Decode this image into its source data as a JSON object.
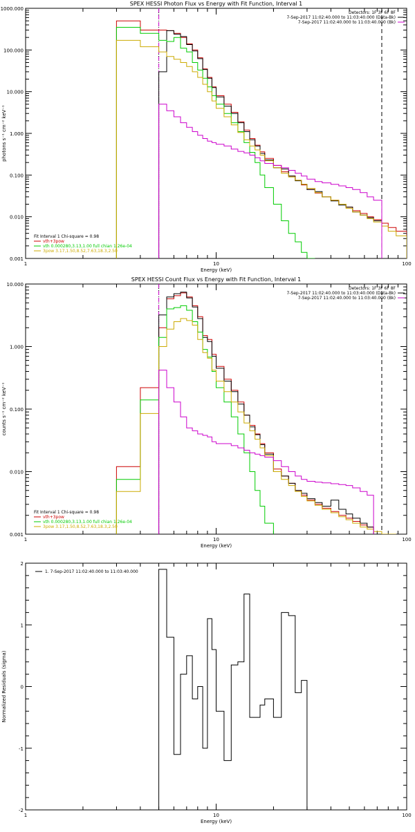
{
  "chart_data": [
    {
      "type": "line",
      "title": "SPEX HESSI Photon Flux vs Energy with Fit Function, Interval 1",
      "xlabel": "Energy (keV)",
      "ylabel": "photons s⁻¹ cm⁻² keV⁻¹",
      "xscale": "log",
      "yscale": "log",
      "xlim": [
        1,
        100
      ],
      "ylim": [
        0.001,
        1000
      ],
      "x_ticks": [
        "1",
        "10",
        "100"
      ],
      "y_ticks": [
        "0.001",
        "0.010",
        "0.100",
        "1.000",
        "10.000",
        "100.000",
        "1000.000"
      ],
      "legend_tr": [
        {
          "text": "Detectors: 1F 3F 6F 8F",
          "color": "#000000"
        },
        {
          "text": "7-Sep-2017 11:02:40.000 to 11:03:40.000 (Data-Bk)",
          "color": "#000000"
        },
        {
          "text": "7-Sep-2017 11:02:40.000 to 11:03:40.000 (Bk)",
          "color": "#cc00cc"
        }
      ],
      "legend_bl": [
        {
          "text": "Fit Interval 1   Chi-square = 0.98",
          "color": "#000000"
        },
        {
          "text": "vth+3pow",
          "color": "#cc0000"
        },
        {
          "text": "vth 0.000280,3.13,1.00  full chian 1.26e-04",
          "color": "#00cc00"
        },
        {
          "text": "3pow 3.17,1.50,8.52,7.63,18.3,2.50",
          "color": "#ccaa00"
        }
      ],
      "vlines": [
        {
          "x": 5.0,
          "style": "dotted",
          "color": "#000000"
        },
        {
          "x": 5.0,
          "style": "dashed",
          "color": "#cc00cc"
        },
        {
          "x": 74.0,
          "style": "dashed",
          "color": "#000000"
        }
      ],
      "edges": [
        3,
        4,
        5,
        5.5,
        6,
        6.5,
        7,
        7.5,
        8,
        8.5,
        9,
        9.5,
        10,
        11,
        12,
        13,
        14,
        15,
        16,
        17,
        18,
        20,
        22,
        24,
        26,
        28,
        30,
        33,
        36,
        40,
        44,
        48,
        52,
        57,
        62,
        67,
        74,
        80,
        88,
        100
      ],
      "series": [
        {
          "name": "vth+3pow",
          "color": "#cc0000",
          "y": [
            500,
            300,
            300,
            290,
            250,
            200,
            140,
            100,
            65,
            35,
            22,
            13,
            8,
            5,
            3.2,
            1.9,
            1.2,
            0.75,
            0.52,
            0.36,
            0.25,
            0.17,
            0.12,
            0.095,
            0.075,
            0.058,
            0.045,
            0.037,
            0.03,
            0.025,
            0.02,
            0.017,
            0.014,
            0.012,
            0.01,
            0.0085,
            0.007,
            0.0055,
            0.0045
          ]
        },
        {
          "name": "Data-Bk",
          "color": "#000000",
          "y": [
            null,
            null,
            30,
            290,
            240,
            210,
            135,
            95,
            62,
            34,
            21,
            12.5,
            7.5,
            4.5,
            3,
            1.8,
            1.1,
            0.7,
            0.5,
            0.33,
            0.23,
            0.15,
            0.14,
            0.095,
            0.073,
            0.06,
            0.045,
            0.04,
            0.03,
            0.024,
            0.019,
            0.017,
            0.013,
            0.011,
            0.0095,
            0.008,
            null,
            null,
            null
          ]
        },
        {
          "name": "vth",
          "color": "#00cc00",
          "y": [
            350,
            250,
            170,
            160,
            200,
            110,
            90,
            50,
            33,
            21,
            13,
            8,
            5,
            3,
            1.8,
            1.1,
            0.6,
            0.35,
            0.2,
            0.1,
            0.05,
            0.02,
            0.008,
            0.004,
            0.0025,
            0.0014,
            0.0008,
            null,
            null,
            null,
            null,
            null,
            null,
            null,
            null,
            null,
            null,
            null,
            null
          ]
        },
        {
          "name": "3pow",
          "color": "#ccaa00",
          "y": [
            170,
            120,
            90,
            70,
            60,
            50,
            40,
            30,
            22,
            15,
            10,
            6,
            4,
            2.5,
            1.6,
            1.05,
            0.7,
            0.5,
            0.4,
            0.3,
            0.22,
            0.15,
            0.11,
            0.09,
            0.075,
            0.06,
            0.048,
            0.038,
            0.03,
            0.025,
            0.02,
            0.016,
            0.013,
            0.011,
            0.009,
            0.0075,
            0.006,
            0.0045,
            0.0035
          ]
        },
        {
          "name": "Bk",
          "color": "#cc00cc",
          "y": [
            null,
            null,
            5,
            3.5,
            2.5,
            1.8,
            1.4,
            1.1,
            0.9,
            0.75,
            0.65,
            0.6,
            0.55,
            0.5,
            0.42,
            0.37,
            0.34,
            0.3,
            0.26,
            0.22,
            0.19,
            0.17,
            0.15,
            0.13,
            0.11,
            0.095,
            0.08,
            0.07,
            0.065,
            0.06,
            0.055,
            0.05,
            0.045,
            0.038,
            0.03,
            0.025,
            null,
            null,
            null
          ]
        }
      ]
    },
    {
      "type": "line",
      "title": "SPEX HESSI Count Flux vs Energy with Fit Function, Interval 1",
      "xlabel": "Energy (keV)",
      "ylabel": "counts s⁻¹ cm⁻² keV⁻¹",
      "xscale": "log",
      "yscale": "log",
      "xlim": [
        1,
        100
      ],
      "ylim": [
        0.001,
        10
      ],
      "x_ticks": [
        "1",
        "10",
        "100"
      ],
      "y_ticks": [
        "0.001",
        "0.010",
        "0.100",
        "1.000",
        "10.000"
      ],
      "legend_tr": [
        {
          "text": "Detectors: 1F 3F 6F 8F",
          "color": "#000000"
        },
        {
          "text": "7-Sep-2017 11:02:40.000 to 11:03:40.000 (Data-Bk)",
          "color": "#000000"
        },
        {
          "text": "7-Sep-2017 11:02:40.000 to 11:03:40.000 (Bk)",
          "color": "#cc00cc"
        }
      ],
      "legend_bl": [
        {
          "text": "Fit Interval 1   Chi-square = 0.98",
          "color": "#000000"
        },
        {
          "text": "vth+3pow",
          "color": "#cc0000"
        },
        {
          "text": "vth 0.000280,3.13,1.00  full chian 1.26e-04",
          "color": "#00cc00"
        },
        {
          "text": "3pow 3.17,1.50,8.52,7.63,18.3,2.50",
          "color": "#ccaa00"
        }
      ],
      "vlines": [
        {
          "x": 5.0,
          "style": "dotted",
          "color": "#000000"
        },
        {
          "x": 5.0,
          "style": "dashed",
          "color": "#cc00cc"
        },
        {
          "x": 74.0,
          "style": "dashed",
          "color": "#000000"
        }
      ],
      "edges": [
        3,
        4,
        5,
        5.5,
        6,
        6.5,
        7,
        7.5,
        8,
        8.5,
        9,
        9.5,
        10,
        11,
        12,
        13,
        14,
        15,
        16,
        17,
        18,
        20,
        22,
        24,
        26,
        28,
        30,
        33,
        36,
        40,
        44,
        48,
        52,
        57,
        62,
        67,
        74,
        80,
        88
      ],
      "series": [
        {
          "name": "vth+3pow",
          "color": "#cc0000",
          "y": [
            0.012,
            0.22,
            2.0,
            5.8,
            6.5,
            7.2,
            6.2,
            4.5,
            3.0,
            1.5,
            1.3,
            0.75,
            0.48,
            0.3,
            0.2,
            0.13,
            0.08,
            0.055,
            0.04,
            0.028,
            0.02,
            0.011,
            0.0085,
            0.0065,
            0.005,
            0.0042,
            0.0035,
            0.003,
            0.0026,
            0.0023,
            0.002,
            0.0018,
            0.0016,
            0.0014,
            0.0013,
            null,
            null,
            null
          ]
        },
        {
          "name": "Data-Bk",
          "color": "#000000",
          "y": [
            null,
            null,
            3.2,
            6.2,
            7.0,
            7.4,
            6.0,
            4.3,
            2.8,
            1.4,
            1.2,
            0.7,
            0.45,
            0.28,
            0.19,
            0.12,
            0.08,
            0.052,
            0.039,
            0.027,
            0.019,
            0.01,
            0.0085,
            0.0065,
            0.005,
            0.0045,
            0.0037,
            0.0032,
            0.0028,
            0.0035,
            0.0025,
            0.0021,
            0.0018,
            0.0015,
            0.0013,
            null,
            null,
            null
          ]
        },
        {
          "name": "vth",
          "color": "#00cc00",
          "y": [
            0.0075,
            0.14,
            1.4,
            4.0,
            4.2,
            4.5,
            3.8,
            2.5,
            1.7,
            0.9,
            0.68,
            0.4,
            0.22,
            0.13,
            0.075,
            0.04,
            0.02,
            0.01,
            0.005,
            0.0028,
            0.0015,
            null,
            null,
            null,
            null,
            null,
            null,
            null,
            null,
            null,
            null,
            null,
            null,
            null,
            null,
            null,
            null,
            null
          ]
        },
        {
          "name": "3pow",
          "color": "#ccaa00",
          "y": [
            0.0048,
            0.085,
            1.0,
            1.9,
            2.5,
            2.8,
            2.6,
            2.2,
            1.3,
            0.8,
            0.65,
            0.42,
            0.28,
            0.19,
            0.13,
            0.09,
            0.06,
            0.045,
            0.033,
            0.024,
            0.018,
            0.01,
            0.0075,
            0.006,
            0.0048,
            0.004,
            0.0034,
            0.0029,
            0.0025,
            0.0022,
            0.0019,
            0.0017,
            0.0015,
            0.0013,
            0.0012,
            0.0011,
            0.001,
            0.0009
          ]
        },
        {
          "name": "Bk",
          "color": "#cc00cc",
          "y": [
            null,
            null,
            0.42,
            0.22,
            0.13,
            0.075,
            0.05,
            0.045,
            0.04,
            0.038,
            0.036,
            0.03,
            0.028,
            0.028,
            0.026,
            0.024,
            0.022,
            0.02,
            0.019,
            0.018,
            0.017,
            0.015,
            0.012,
            0.01,
            0.0085,
            0.0075,
            0.007,
            0.0068,
            0.0066,
            0.0064,
            0.0062,
            0.006,
            0.0055,
            0.0048,
            0.0042,
            null,
            null,
            null
          ]
        }
      ]
    },
    {
      "type": "line",
      "title": "",
      "xlabel": "Energy (keV)",
      "ylabel": "Normalized Residuals (sigma)",
      "xscale": "log",
      "yscale": "linear",
      "xlim": [
        1,
        100
      ],
      "ylim": [
        -2,
        2
      ],
      "x_ticks": [
        "1",
        "10",
        "100"
      ],
      "y_ticks": [
        "-2",
        "-1",
        "0",
        "1",
        "2"
      ],
      "legend_tl": [
        {
          "text": "1.  7-Sep-2017 11:02:40.000 to 11:03:40.000",
          "color": "#000000"
        }
      ],
      "edges": [
        5,
        5.5,
        6,
        6.5,
        7,
        7.5,
        8,
        8.5,
        9,
        9.5,
        10,
        11,
        12,
        13,
        14,
        15,
        16,
        17,
        18,
        20,
        22,
        24,
        26,
        28,
        30,
        33,
        36,
        40,
        44,
        48,
        52,
        57,
        62,
        67,
        74
      ],
      "series": [
        {
          "name": "residuals",
          "color": "#000000",
          "y": [
            1.9,
            0.8,
            -1.1,
            0.2,
            0.5,
            -0.2,
            0.0,
            -1.0,
            1.1,
            0.6,
            -0.4,
            -1.2,
            0.35,
            0.4,
            1.5,
            -0.5,
            -0.5,
            -0.3,
            -0.2,
            -0.5,
            1.2,
            1.15,
            -0.1,
            0.1,
            null,
            null,
            null,
            null,
            null,
            null,
            null,
            null,
            null,
            null
          ]
        }
      ]
    }
  ]
}
